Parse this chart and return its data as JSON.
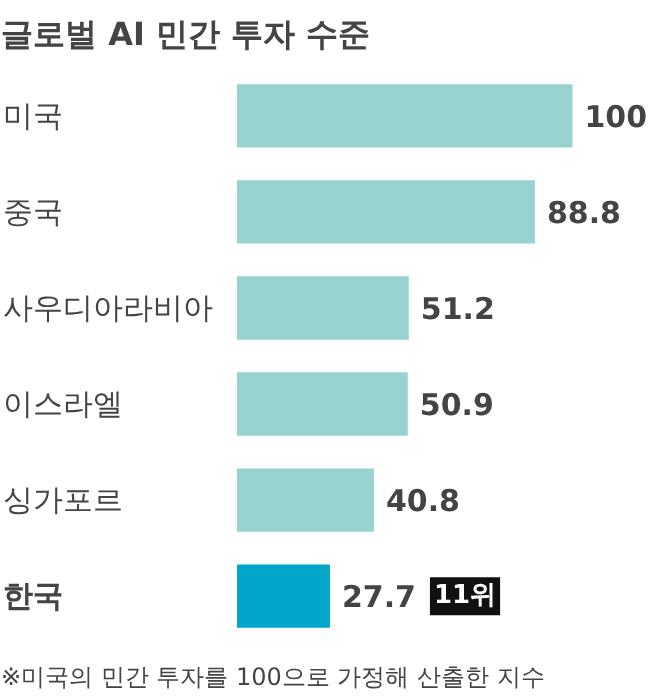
{
  "chart_data": {
    "type": "bar",
    "orientation": "horizontal",
    "title": "글로벌 AI 민간 투자 수준",
    "categories": [
      "미국",
      "중국",
      "사우디아라비아",
      "이스라엘",
      "싱가포르",
      "한국"
    ],
    "values": [
      100,
      88.8,
      51.2,
      50.9,
      40.8,
      27.7
    ],
    "colors": [
      "#98d3cf",
      "#98d3cf",
      "#98d3cf",
      "#98d3cf",
      "#98d3cf",
      "#00a7ca"
    ],
    "data_labels": true,
    "annotations": [
      "11위",
      "※미국의 민간 투자를 100으로 가정해 산출한 지수"
    ]
  }
}
